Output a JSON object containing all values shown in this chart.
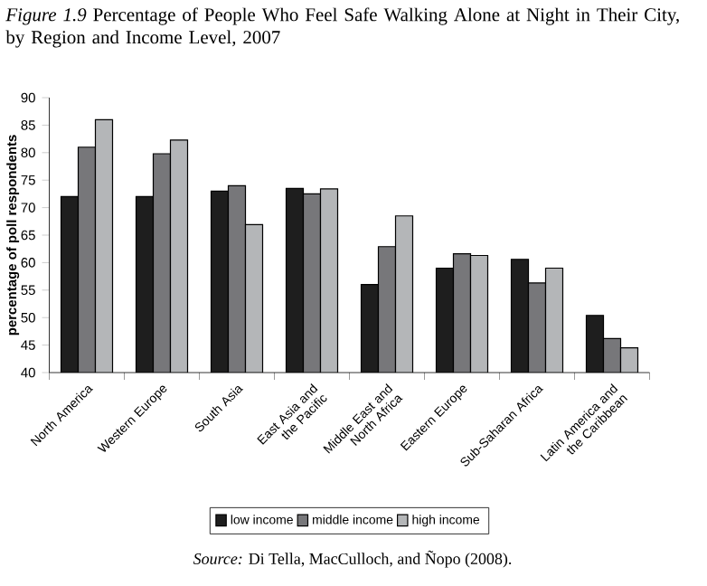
{
  "chart_data": {
    "type": "bar",
    "title": "*Figure 1.9* Percentage of People Who Feel Safe Walking Alone at Night in Their City, by Region and Income Level, 2007",
    "ylabel": "percentage of poll respondents",
    "categories": [
      "North America",
      "Western Europe",
      "South Asia",
      "East Asia and the Pacific",
      "Middle East and North Africa",
      "Eastern Europe",
      "Sub-Saharan Africa",
      "Latin America and the Caribbean"
    ],
    "series": [
      {
        "name": "low income",
        "color": "#1e1e1e",
        "values": [
          72,
          72,
          73,
          73.5,
          56,
          59,
          60.6,
          50.4
        ]
      },
      {
        "name": "middle income",
        "color": "#77777a",
        "values": [
          81,
          79.8,
          74,
          72.5,
          62.9,
          61.6,
          56.3,
          46.2
        ]
      },
      {
        "name": "high income",
        "color": "#b4b6b8",
        "values": [
          86,
          82.3,
          66.9,
          73.4,
          68.5,
          61.3,
          59,
          44.5
        ]
      }
    ],
    "ylim": [
      40,
      90
    ],
    "yticks": [
      40,
      45,
      50,
      55,
      60,
      65,
      70,
      75,
      80,
      85,
      90
    ],
    "grid": false,
    "legend": "bottom",
    "annotations": [
      "*Source:* Di Tella, MacCulloch, and Ñopo (2008)."
    ]
  }
}
